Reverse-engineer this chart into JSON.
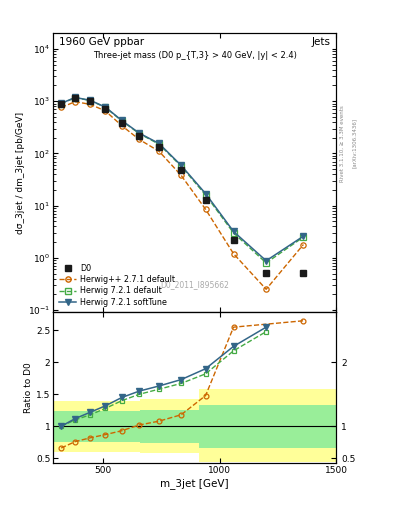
{
  "title_top": "1960 GeV ppbar",
  "title_top_right": "Jets",
  "subtitle": "Three-jet mass (D0 p_{T,3} > 40 GeV, |y| < 2.4)",
  "watermark": "D0_2011_I895662",
  "ylabel_main": "dσ_3jet / dm_3jet [pb/GeV]",
  "ylabel_ratio": "Ratio to D0",
  "xlabel": "m_3jet [GeV]",
  "right_label_top": "Rivet 3.1.10, ≥ 3.3M events",
  "right_label_bot": "[arXiv:1306.3436]",
  "xlim": [
    285,
    1500
  ],
  "ylim_main": [
    0.09,
    20000
  ],
  "ylim_ratio": [
    0.42,
    2.78
  ],
  "d0_x": [
    320,
    380,
    445,
    510,
    580,
    655,
    740,
    835,
    940,
    1060,
    1200,
    1360
  ],
  "d0_y": [
    870,
    1150,
    1000,
    720,
    390,
    215,
    130,
    48,
    13,
    2.2,
    0.52,
    0.52
  ],
  "hpp_x": [
    320,
    380,
    445,
    510,
    580,
    655,
    740,
    835,
    940,
    1060,
    1200,
    1360
  ],
  "hpp_y": [
    760,
    980,
    870,
    650,
    340,
    185,
    110,
    38,
    8.5,
    1.2,
    0.25,
    1.8
  ],
  "h721d_x": [
    320,
    380,
    445,
    510,
    580,
    655,
    740,
    835,
    940,
    1060,
    1200,
    1360
  ],
  "h721d_y": [
    900,
    1170,
    1030,
    760,
    420,
    240,
    150,
    57,
    16,
    3.0,
    0.8,
    2.5
  ],
  "h721s_x": [
    320,
    380,
    445,
    510,
    580,
    655,
    740,
    835,
    940,
    1060,
    1200,
    1360
  ],
  "h721s_y": [
    910,
    1180,
    1040,
    770,
    428,
    245,
    155,
    59,
    17,
    3.2,
    0.88,
    2.6
  ],
  "ratio_hpp_x": [
    320,
    380,
    445,
    510,
    580,
    655,
    740,
    835,
    940,
    1060,
    1360
  ],
  "ratio_hpp_y": [
    0.66,
    0.76,
    0.82,
    0.87,
    0.93,
    1.02,
    1.08,
    1.18,
    1.48,
    2.55,
    2.65
  ],
  "ratio_h721d_x": [
    320,
    380,
    445,
    510,
    580,
    655,
    740,
    835,
    940,
    1060,
    1200
  ],
  "ratio_h721d_y": [
    1.0,
    1.1,
    1.18,
    1.28,
    1.4,
    1.5,
    1.58,
    1.67,
    1.82,
    2.18,
    2.48
  ],
  "ratio_h721s_x": [
    320,
    380,
    445,
    510,
    580,
    655,
    740,
    835,
    940,
    1060,
    1200
  ],
  "ratio_h721s_y": [
    1.0,
    1.12,
    1.22,
    1.32,
    1.45,
    1.55,
    1.63,
    1.73,
    1.9,
    2.25,
    2.55
  ],
  "band_yellow_edges": [
    285,
    460,
    660,
    910,
    1110,
    1500
  ],
  "band_yellow_lo": [
    0.6,
    0.6,
    0.58,
    0.44,
    0.44,
    0.44
  ],
  "band_yellow_hi": [
    1.4,
    1.4,
    1.42,
    1.58,
    1.58,
    1.58
  ],
  "band_green_edges": [
    285,
    460,
    660,
    910,
    1110,
    1500
  ],
  "band_green_lo": [
    0.76,
    0.76,
    0.74,
    0.66,
    0.66,
    0.66
  ],
  "band_green_hi": [
    1.24,
    1.24,
    1.26,
    1.34,
    1.34,
    1.34
  ],
  "color_d0": "#1a1a1a",
  "color_hpp": "#cc6600",
  "color_h721d": "#44aa44",
  "color_h721s": "#336688",
  "color_yellow": "#ffff99",
  "color_green": "#99ee99",
  "bg_color": "#ffffff"
}
